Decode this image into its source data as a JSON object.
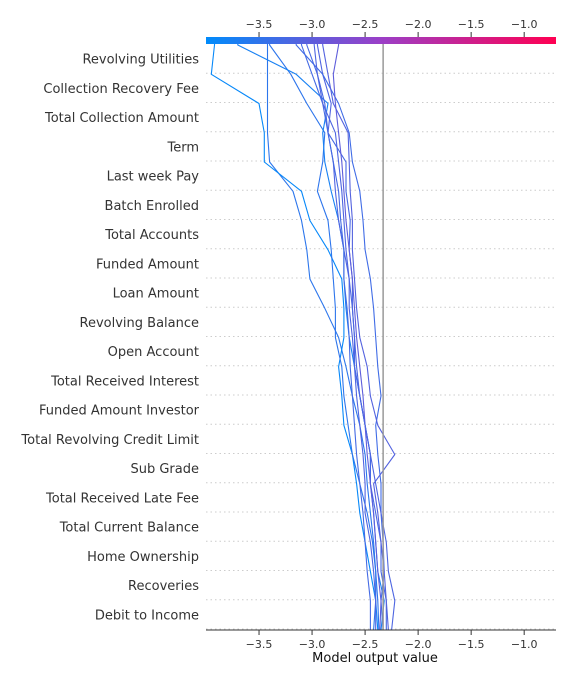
{
  "chart_data": {
    "type": "line",
    "subtype": "shap-decision-plot",
    "title": "",
    "xlabel": "Model output value",
    "ylabel": "",
    "xlim": [
      -4.0,
      -0.7
    ],
    "xticks": [
      -3.5,
      -3.0,
      -2.5,
      -2.0,
      -1.5,
      -1.0
    ],
    "xtick_labels": [
      "−3.5",
      "−3.0",
      "−2.5",
      "−2.0",
      "−1.5",
      "−1.0"
    ],
    "base_value": -2.33,
    "colorbar": {
      "position": "top",
      "colors": [
        "#008bfb",
        "#9b3fc7",
        "#ff0052"
      ]
    },
    "grid": "dotted horizontal per feature",
    "features": [
      "Revolving Utilities",
      "Collection Recovery Fee",
      "Total Collection Amount",
      "Term",
      "Last week Pay",
      "Batch Enrolled",
      "Total Accounts",
      "Funded Amount",
      "Loan Amount",
      "Revolving Balance",
      "Open Account",
      "Total Received Interest",
      "Funded Amount Investor",
      "Total Revolving Credit Limit",
      "Sub Grade",
      "Total Received Late Fee",
      "Total Current Balance",
      "Home Ownership",
      "Recoveries",
      "Debit to Income"
    ],
    "series_note": "Each path lists the cumulative model output from the bottom (base) up to the top (final prediction), one value per feature boundary.",
    "series": [
      {
        "values": [
          -2.42,
          -2.4,
          -2.4,
          -2.42,
          -2.45,
          -2.48,
          -2.5,
          -2.55,
          -2.62,
          -2.68,
          -2.75,
          -2.88,
          -3.02,
          -3.05,
          -3.1,
          -3.18,
          -3.4,
          -3.42,
          -3.42,
          -3.42,
          -3.42
        ]
      },
      {
        "values": [
          -2.38,
          -2.4,
          -2.45,
          -2.5,
          -2.55,
          -2.58,
          -2.62,
          -2.7,
          -2.72,
          -2.75,
          -2.7,
          -2.7,
          -2.72,
          -2.85,
          -3.02,
          -3.1,
          -3.45,
          -3.45,
          -3.5,
          -3.95,
          -3.92
        ]
      },
      {
        "values": [
          -2.37,
          -2.38,
          -2.4,
          -2.43,
          -2.48,
          -2.55,
          -2.62,
          -2.66,
          -2.7,
          -2.72,
          -2.78,
          -2.78,
          -2.8,
          -2.82,
          -2.85,
          -2.95,
          -2.9,
          -2.88,
          -3.05,
          -3.2,
          -3.4
        ]
      },
      {
        "values": [
          -2.35,
          -2.32,
          -2.38,
          -2.4,
          -2.42,
          -2.45,
          -2.45,
          -2.5,
          -2.55,
          -2.6,
          -2.65,
          -2.68,
          -2.7,
          -2.7,
          -2.75,
          -2.82,
          -2.88,
          -2.9,
          -2.85,
          -3.15,
          -3.7
        ]
      },
      {
        "values": [
          -2.4,
          -2.4,
          -2.42,
          -2.45,
          -2.5,
          -2.5,
          -2.52,
          -2.55,
          -2.58,
          -2.6,
          -2.62,
          -2.65,
          -2.65,
          -2.7,
          -2.75,
          -2.78,
          -2.8,
          -2.85,
          -2.82,
          -2.9,
          -2.95
        ]
      },
      {
        "values": [
          -2.45,
          -2.45,
          -2.48,
          -2.5,
          -2.52,
          -2.55,
          -2.58,
          -2.6,
          -2.62,
          -2.64,
          -2.65,
          -2.67,
          -2.7,
          -2.7,
          -2.73,
          -2.75,
          -2.8,
          -2.85,
          -2.9,
          -3.0,
          -3.1
        ]
      },
      {
        "values": [
          -2.33,
          -2.35,
          -2.32,
          -2.33,
          -2.35,
          -2.35,
          -2.38,
          -2.4,
          -2.35,
          -2.38,
          -2.4,
          -2.42,
          -2.45,
          -2.5,
          -2.52,
          -2.55,
          -2.62,
          -2.65,
          -2.75,
          -2.9,
          -3.15
        ]
      },
      {
        "values": [
          -2.3,
          -2.3,
          -2.35,
          -2.35,
          -2.4,
          -2.45,
          -2.45,
          -2.5,
          -2.55,
          -2.6,
          -2.6,
          -2.62,
          -2.62,
          -2.65,
          -2.64,
          -2.68,
          -2.68,
          -2.85,
          -2.88,
          -2.95,
          -3.05
        ]
      },
      {
        "values": [
          -2.28,
          -2.3,
          -2.32,
          -2.35,
          -2.38,
          -2.42,
          -2.22,
          -2.38,
          -2.45,
          -2.48,
          -2.55,
          -2.58,
          -2.6,
          -2.62,
          -2.62,
          -2.64,
          -2.65,
          -2.66,
          -2.8,
          -2.85,
          -2.9
        ]
      },
      {
        "values": [
          -2.36,
          -2.35,
          -2.38,
          -2.4,
          -2.42,
          -2.45,
          -2.48,
          -2.5,
          -2.52,
          -2.55,
          -2.58,
          -2.6,
          -2.62,
          -2.65,
          -2.68,
          -2.7,
          -2.72,
          -2.75,
          -2.78,
          -2.8,
          -2.75
        ]
      },
      {
        "values": [
          -2.25,
          -2.22,
          -2.28,
          -2.3,
          -2.35,
          -2.4,
          -2.45,
          -2.5,
          -2.55,
          -2.58,
          -2.6,
          -2.62,
          -2.65,
          -2.68,
          -2.7,
          -2.72,
          -2.75,
          -2.78,
          -2.9,
          -2.95,
          -2.98
        ]
      }
    ]
  }
}
